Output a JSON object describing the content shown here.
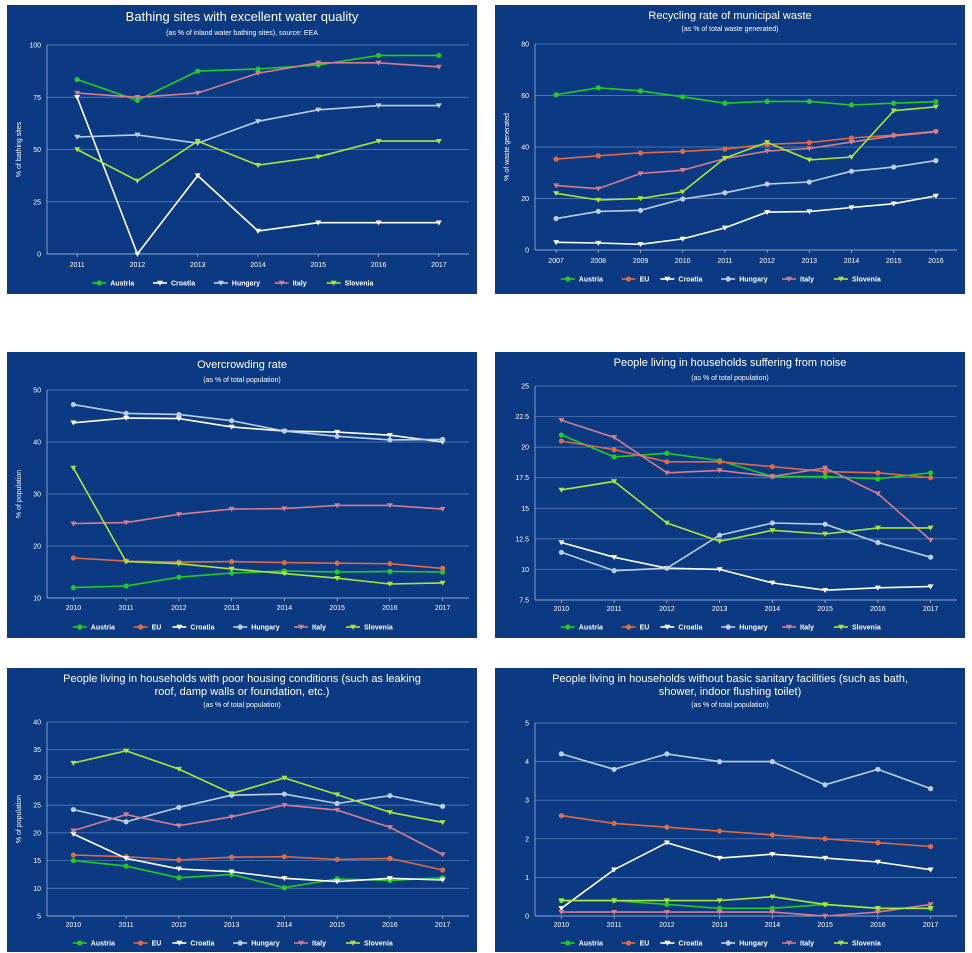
{
  "colors": {
    "background": "#0b3a82",
    "Austria": "#22cc22",
    "EU": "#e06a45",
    "Croatia": "#ffffff",
    "Hungary": "#b9d0e6",
    "Italy": "#d47c90",
    "Slovenia": "#a8e63a"
  },
  "chart_data": [
    {
      "type": "line",
      "title": "Bathing sites with excellent water quality",
      "subtitle": "(as % of inland water bathing sites), source: EEA",
      "ylabel": "% of bathing sites",
      "x": [
        "2011",
        "2012",
        "2013",
        "2014",
        "2015",
        "2016",
        "2017"
      ],
      "ylim": [
        0,
        100
      ],
      "yticks": [
        "0",
        "25",
        "50",
        "75",
        "100"
      ],
      "series": [
        {
          "name": "Austria",
          "marker": "circle",
          "values": [
            83.5,
            73.5,
            87.5,
            88.5,
            90.5,
            95,
            95
          ]
        },
        {
          "name": "Croatia",
          "marker": "triangle",
          "values": [
            75,
            0,
            37.5,
            11,
            15,
            15,
            15
          ]
        },
        {
          "name": "Hungary",
          "marker": "triangle",
          "values": [
            56,
            57,
            53,
            63.5,
            69,
            71,
            71
          ]
        },
        {
          "name": "Italy",
          "marker": "triangle",
          "values": [
            77,
            75,
            77,
            86.5,
            91.5,
            91.5,
            89.5
          ]
        },
        {
          "name": "Slovenia",
          "marker": "triangle",
          "values": [
            50,
            35,
            54,
            42.5,
            46.5,
            54,
            54
          ]
        }
      ]
    },
    {
      "type": "line",
      "title": "Recycling rate of municipal waste",
      "subtitle": "(as % of total waste generated)",
      "ylabel": "% of waste generated",
      "x": [
        "2007",
        "2008",
        "2009",
        "2010",
        "2011",
        "2012",
        "2013",
        "2014",
        "2015",
        "2016"
      ],
      "ylim": [
        0,
        80
      ],
      "yticks": [
        "0",
        "20",
        "40",
        "60",
        "80"
      ],
      "series": [
        {
          "name": "Austria",
          "marker": "circle",
          "values": [
            60.3,
            63,
            61.8,
            59.5,
            57,
            57.7,
            57.7,
            56.3,
            57,
            57.6
          ]
        },
        {
          "name": "EU",
          "marker": "circle",
          "values": [
            35.3,
            36.6,
            37.7,
            38.3,
            39.2,
            41,
            41.7,
            43.5,
            44.6,
            46.1
          ]
        },
        {
          "name": "Croatia",
          "marker": "triangle",
          "values": [
            3,
            2.7,
            2.2,
            4.3,
            8.6,
            14.7,
            14.9,
            16.5,
            18,
            21
          ]
        },
        {
          "name": "Hungary",
          "marker": "circle",
          "values": [
            12.2,
            15,
            15.4,
            19.8,
            22.2,
            25.6,
            26.4,
            30.6,
            32.2,
            34.7
          ]
        },
        {
          "name": "Italy",
          "marker": "triangle",
          "values": [
            25,
            23.8,
            29.7,
            31,
            35.5,
            38.4,
            39.4,
            41.9,
            44.3,
            45.9
          ]
        },
        {
          "name": "Slovenia",
          "marker": "triangle",
          "values": [
            22,
            19.4,
            20,
            22.6,
            35.7,
            41.8,
            35,
            36.1,
            54.1,
            55.6
          ]
        }
      ]
    },
    {
      "type": "line",
      "title": "Overcrowding rate",
      "subtitle": "(as % of total population)",
      "ylabel": "% of population",
      "x": [
        "2010",
        "2011",
        "2012",
        "2013",
        "2014",
        "2015",
        "2016",
        "2017"
      ],
      "ylim": [
        10,
        50
      ],
      "yticks": [
        "10",
        "20",
        "30",
        "40",
        "50"
      ],
      "series": [
        {
          "name": "Austria",
          "marker": "circle",
          "values": [
            12,
            12.3,
            14,
            14.8,
            15.2,
            15,
            15.1,
            15
          ]
        },
        {
          "name": "EU",
          "marker": "circle",
          "values": [
            17.7,
            17.1,
            16.9,
            17,
            16.8,
            16.7,
            16.6,
            15.7
          ]
        },
        {
          "name": "Croatia",
          "marker": "triangle",
          "values": [
            43.7,
            44.6,
            44.5,
            42.9,
            42.1,
            41.9,
            41.3,
            40
          ]
        },
        {
          "name": "Hungary",
          "marker": "circle",
          "values": [
            47.2,
            45.5,
            45.3,
            44.1,
            42.1,
            41.1,
            40.4,
            40.5
          ]
        },
        {
          "name": "Italy",
          "marker": "triangle",
          "values": [
            24.3,
            24.5,
            26.1,
            27.1,
            27.2,
            27.8,
            27.8,
            27.1
          ]
        },
        {
          "name": "Slovenia",
          "marker": "triangle",
          "values": [
            35,
            17,
            16.6,
            15.6,
            14.7,
            13.8,
            12.7,
            12.9
          ]
        }
      ]
    },
    {
      "type": "line",
      "title": "People living in households suffering from noise",
      "subtitle": "(as % of total population)",
      "ylabel": "",
      "x": [
        "2010",
        "2011",
        "2012",
        "2013",
        "2014",
        "2015",
        "2016",
        "2017"
      ],
      "ylim": [
        7.5,
        25
      ],
      "yticks": [
        "7.5",
        "10",
        "12.5",
        "15",
        "17.5",
        "20",
        "22.5",
        "25"
      ],
      "series": [
        {
          "name": "Austria",
          "marker": "circle",
          "values": [
            21,
            19.2,
            19.5,
            18.9,
            17.6,
            17.6,
            17.4,
            17.9
          ]
        },
        {
          "name": "EU",
          "marker": "circle",
          "values": [
            20.5,
            19.8,
            18.8,
            18.8,
            18.4,
            18,
            17.9,
            17.5
          ]
        },
        {
          "name": "Croatia",
          "marker": "triangle",
          "values": [
            12.2,
            11,
            10.1,
            10,
            8.9,
            8.3,
            8.5,
            8.6
          ]
        },
        {
          "name": "Hungary",
          "marker": "circle",
          "values": [
            11.4,
            9.9,
            10.1,
            12.8,
            13.8,
            13.7,
            12.2,
            11
          ]
        },
        {
          "name": "Italy",
          "marker": "triangle",
          "values": [
            22.2,
            20.8,
            17.9,
            18.1,
            17.6,
            18.3,
            16.2,
            12.4
          ]
        },
        {
          "name": "Slovenia",
          "marker": "triangle",
          "values": [
            16.5,
            17.2,
            13.8,
            12.3,
            13.2,
            12.9,
            13.4,
            13.4
          ]
        }
      ]
    },
    {
      "type": "line",
      "title": "People living in households with poor housing conditions (such as leaking roof, damp walls or foundation, etc.)",
      "titleLines": [
        "People living in households with poor housing conditions (such as leaking",
        "roof, damp walls or foundation, etc.)"
      ],
      "subtitle": "(as % of total population)",
      "ylabel": "% of population",
      "x": [
        "2010",
        "2011",
        "2012",
        "2013",
        "2014",
        "2015",
        "2016",
        "2017"
      ],
      "ylim": [
        5,
        40
      ],
      "yticks": [
        "5",
        "10",
        "15",
        "20",
        "25",
        "30",
        "35",
        "40"
      ],
      "series": [
        {
          "name": "Austria",
          "marker": "circle",
          "values": [
            15,
            14,
            11.9,
            12.5,
            10.1,
            11.7,
            11.4,
            11.9
          ]
        },
        {
          "name": "EU",
          "marker": "circle",
          "values": [
            16,
            15.7,
            15.1,
            15.6,
            15.7,
            15.2,
            15.4,
            13.3
          ]
        },
        {
          "name": "Croatia",
          "marker": "triangle",
          "values": [
            19.8,
            15.4,
            13.5,
            13,
            11.8,
            11.2,
            11.8,
            11.5
          ]
        },
        {
          "name": "Hungary",
          "marker": "circle",
          "values": [
            24.2,
            22,
            24.6,
            26.8,
            27,
            25.3,
            26.7,
            24.8
          ]
        },
        {
          "name": "Italy",
          "marker": "triangle",
          "values": [
            20.4,
            23.3,
            21.3,
            22.9,
            25,
            24.1,
            21,
            16.1
          ]
        },
        {
          "name": "Slovenia",
          "marker": "triangle",
          "values": [
            32.6,
            34.8,
            31.5,
            27.1,
            29.9,
            26.9,
            23.7,
            21.9
          ]
        }
      ]
    },
    {
      "type": "line",
      "title": "People living in households without basic sanitary facilities (such as bath, shower, indoor flushing toilet)",
      "titleLines": [
        "People living in households without basic sanitary facilities (such as bath,",
        "shower, indoor flushing toilet)"
      ],
      "subtitle": "(as % of total population)",
      "ylabel": "",
      "x": [
        "2010",
        "2011",
        "2012",
        "2013",
        "2014",
        "2015",
        "2016",
        "2017"
      ],
      "ylim": [
        0,
        5
      ],
      "yticks": [
        "0",
        "1",
        "2",
        "3",
        "4",
        "5"
      ],
      "series": [
        {
          "name": "Austria",
          "marker": "circle",
          "values": [
            0.4,
            0.4,
            0.3,
            0.2,
            0.2,
            0.3,
            0.2,
            0.2
          ]
        },
        {
          "name": "EU",
          "marker": "circle",
          "values": [
            2.6,
            2.4,
            2.3,
            2.2,
            2.1,
            2,
            1.9,
            1.8
          ]
        },
        {
          "name": "Croatia",
          "marker": "triangle",
          "values": [
            0.2,
            1.2,
            1.9,
            1.5,
            1.6,
            1.5,
            1.4,
            1.2
          ]
        },
        {
          "name": "Hungary",
          "marker": "circle",
          "values": [
            4.2,
            3.8,
            4.2,
            4,
            4,
            3.4,
            3.8,
            3.3
          ]
        },
        {
          "name": "Italy",
          "marker": "triangle",
          "values": [
            0.1,
            0.1,
            0.1,
            0.1,
            0.1,
            0,
            0.1,
            0.3
          ]
        },
        {
          "name": "Slovenia",
          "marker": "triangle",
          "values": [
            0.4,
            0.4,
            0.4,
            0.4,
            0.5,
            0.3,
            0.2,
            0.2
          ]
        }
      ]
    }
  ]
}
